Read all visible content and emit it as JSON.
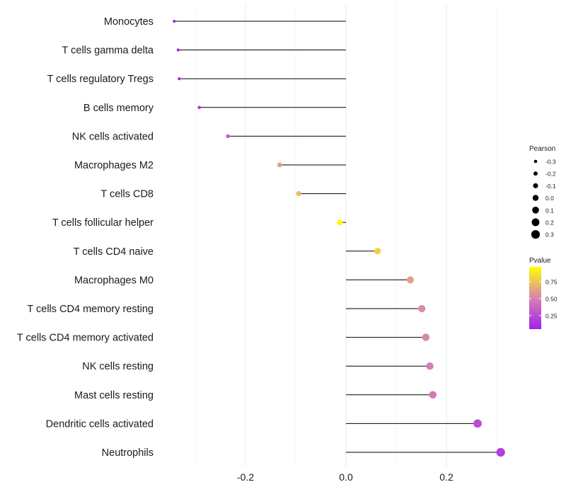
{
  "chart_data": {
    "type": "lollipop",
    "xlabel": "",
    "ylabel": "",
    "xlim": [
      -0.36,
      0.33
    ],
    "x_ticks": [
      -0.2,
      0.0,
      0.2
    ],
    "x_tick_labels": [
      "-0.2",
      "0.0",
      "0.2"
    ],
    "x_minor_grid": [
      -0.3,
      -0.1,
      0.1,
      0.3
    ],
    "categories": [
      "Monocytes",
      "T cells gamma delta",
      "T cells regulatory  Tregs ",
      "B cells memory",
      "NK cells activated",
      "Macrophages M2",
      "T cells CD8",
      "T cells follicular helper",
      "T cells CD4 naive",
      "Macrophages M0",
      "T cells CD4 memory resting",
      "T cells CD4 memory activated",
      "NK cells resting",
      "Mast cells resting",
      "Dendritic cells activated",
      "Neutrophils"
    ],
    "pearson": [
      -0.342,
      -0.334,
      -0.332,
      -0.292,
      -0.235,
      -0.132,
      -0.094,
      -0.012,
      0.063,
      0.128,
      0.151,
      0.159,
      0.167,
      0.173,
      0.262,
      0.308
    ],
    "pvalue": [
      0.06,
      0.08,
      0.09,
      0.17,
      0.32,
      0.61,
      0.72,
      0.96,
      0.8,
      0.62,
      0.55,
      0.52,
      0.49,
      0.47,
      0.26,
      0.2
    ],
    "legend_size": {
      "title": "Pearson",
      "labels": [
        "-0.3",
        "-0.2",
        "-0.1",
        "0.0",
        "0.1",
        "0.2",
        "0.3"
      ],
      "values": [
        -0.3,
        -0.2,
        -0.1,
        0.0,
        0.1,
        0.2,
        0.3
      ]
    },
    "legend_color": {
      "title": "Pvalue",
      "labels": [
        "0.75",
        "0.50",
        "0.25"
      ],
      "values": [
        0.75,
        0.5,
        0.25
      ],
      "range": [
        0.05,
        0.97
      ],
      "low_color": "#a020f0",
      "mid_color": "#d883b0",
      "high_color": "#ffff00"
    }
  }
}
